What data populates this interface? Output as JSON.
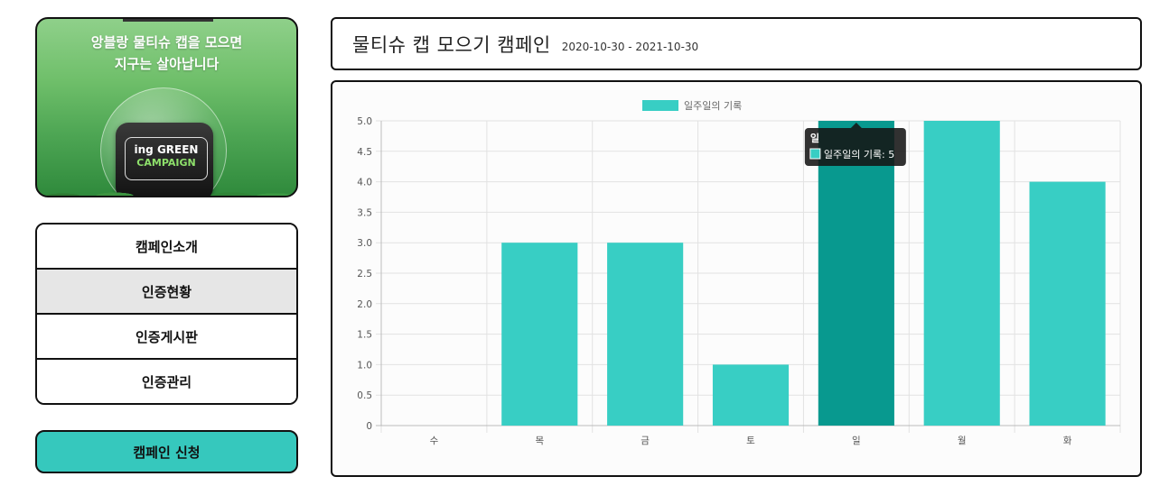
{
  "banner": {
    "line1": "앙블랑 물티슈 캡을 모으면",
    "line2": "지구는 살아납니다",
    "badge_line1": "ing GREEN",
    "badge_line2": "CAMPAIGN"
  },
  "menu": {
    "items": [
      {
        "label": "캠페인소개",
        "active": false
      },
      {
        "label": "인증현황",
        "active": true
      },
      {
        "label": "인증게시판",
        "active": false
      },
      {
        "label": "인증관리",
        "active": false
      }
    ],
    "apply_label": "캠페인 신청"
  },
  "header": {
    "title": "물티슈  캡  모으기  캠페인",
    "period": "2020-10-30 - 2021-10-30"
  },
  "colors": {
    "bar": "#38cec4",
    "bar_hover": "#08998f",
    "apply_button": "#36c8bd"
  },
  "chart_data": {
    "type": "bar",
    "categories": [
      "수",
      "목",
      "금",
      "토",
      "일",
      "월",
      "화"
    ],
    "series": [
      {
        "name": "일주일의 기록",
        "values": [
          0,
          3,
          3,
          1,
          5,
          5,
          4
        ]
      }
    ],
    "ylim": [
      0,
      5
    ],
    "yticks": [
      "0",
      "0.5",
      "1.0",
      "1.5",
      "2.0",
      "2.5",
      "3.0",
      "3.5",
      "4.0",
      "4.5",
      "5.0"
    ],
    "grid": true,
    "legend": "top-center",
    "highlighted_index": 4,
    "tooltip": {
      "title": "일",
      "label": "일주일의 기록: 5"
    }
  }
}
